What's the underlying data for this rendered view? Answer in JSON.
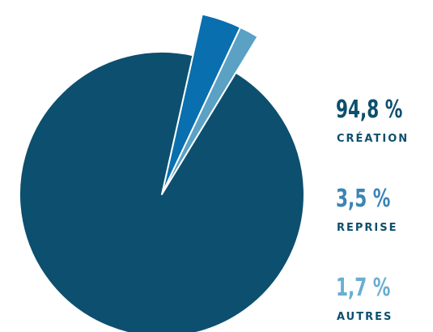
{
  "chart_data": {
    "type": "pie",
    "categories": [
      "CRÉATION",
      "REPRISE",
      "AUTRES"
    ],
    "values": [
      94.8,
      3.5,
      1.7
    ],
    "value_labels": [
      "94,8 %",
      "3,5 %",
      "1,7 %"
    ],
    "colors": [
      "#0d4f6e",
      "#0a6fae",
      "#5aa1c4"
    ]
  }
}
